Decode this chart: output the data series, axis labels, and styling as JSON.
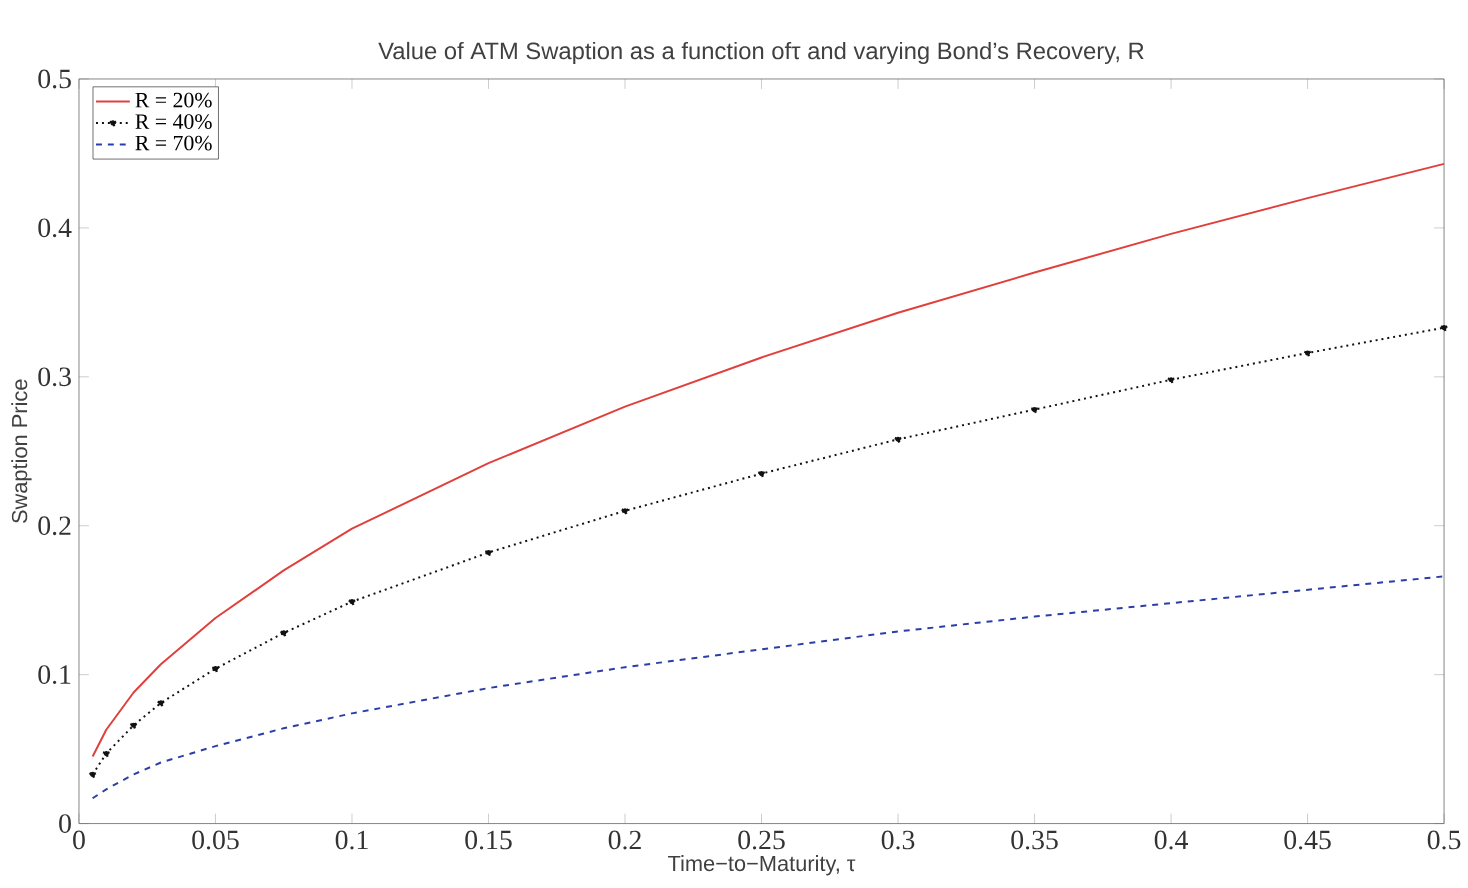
{
  "chart_data": {
    "type": "line",
    "title": "Value of ATM Swaption as a function ofτ and varying Bond’s Recovery, R",
    "xlabel": "Time−to−Maturity, τ",
    "ylabel": "Swaption Price",
    "x": [
      0.005,
      0.01,
      0.02,
      0.03,
      0.05,
      0.075,
      0.1,
      0.15,
      0.2,
      0.25,
      0.3,
      0.35,
      0.4,
      0.45,
      0.5
    ],
    "series": [
      {
        "name": "R = 20%",
        "color": "#e0403c",
        "line_style": "solid",
        "marker": "none",
        "values": [
          0.045,
          0.063,
          0.088,
          0.107,
          0.138,
          0.17,
          0.198,
          0.242,
          0.28,
          0.313,
          0.343,
          0.37,
          0.396,
          0.42,
          0.443
        ]
      },
      {
        "name": "R = 40%",
        "color": "#111111",
        "line_style": "dotted",
        "marker": "circle",
        "values": [
          0.033,
          0.047,
          0.066,
          0.081,
          0.104,
          0.128,
          0.149,
          0.182,
          0.21,
          0.235,
          0.258,
          0.278,
          0.298,
          0.316,
          0.333
        ]
      },
      {
        "name": "R = 70%",
        "color": "#2b3ea8",
        "line_style": "dashed",
        "marker": "none",
        "values": [
          0.017,
          0.023,
          0.033,
          0.041,
          0.052,
          0.064,
          0.074,
          0.091,
          0.105,
          0.117,
          0.129,
          0.139,
          0.148,
          0.157,
          0.166
        ]
      }
    ],
    "xlim": [
      0,
      0.5
    ],
    "xticks": [
      0,
      0.05,
      0.1,
      0.15,
      0.2,
      0.25,
      0.3,
      0.35,
      0.4,
      0.45,
      0.5
    ],
    "ylim": [
      0,
      0.5
    ],
    "yticks": [
      0,
      0.1,
      0.2,
      0.3,
      0.4,
      0.5
    ],
    "grid": false,
    "legend": "top left"
  }
}
